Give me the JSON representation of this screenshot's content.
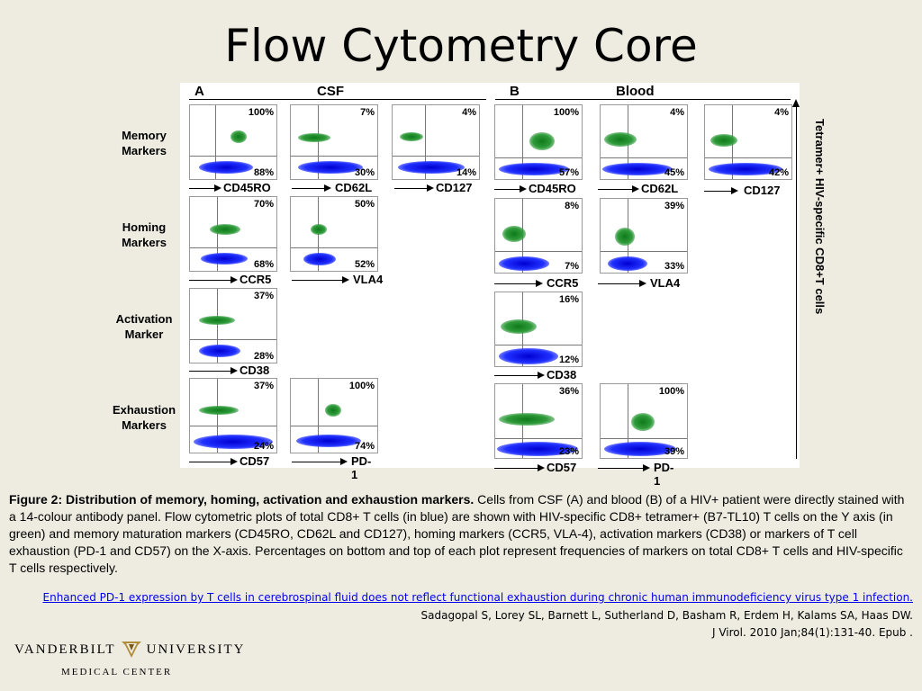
{
  "title": "Flow Cytometry Core",
  "figure": {
    "panel_a": {
      "letter": "A",
      "name": "CSF"
    },
    "panel_b": {
      "letter": "B",
      "name": "Blood"
    },
    "row_labels": [
      {
        "line1": "Memory",
        "line2": "Markers"
      },
      {
        "line1": "Homing",
        "line2": "Markers"
      },
      {
        "line1": "Activation",
        "line2": "Marker"
      },
      {
        "line1": "Exhaustion",
        "line2": "Markers"
      }
    ],
    "plots": {
      "a_memory": [
        {
          "top": "100%",
          "bottom": "88%",
          "x": "CD45RO"
        },
        {
          "top": "7%",
          "bottom": "30%",
          "x": "CD62L"
        },
        {
          "top": "4%",
          "bottom": "14%",
          "x": "CD127"
        }
      ],
      "b_memory": [
        {
          "top": "100%",
          "bottom": "57%",
          "x": "CD45RO"
        },
        {
          "top": "4%",
          "bottom": "45%",
          "x": "CD62L"
        },
        {
          "top": "4%",
          "bottom": "42%",
          "x": "CD127"
        }
      ],
      "a_homing": [
        {
          "top": "70%",
          "bottom": "68%",
          "x": "CCR5"
        },
        {
          "top": "50%",
          "bottom": "52%",
          "x": "VLA4"
        }
      ],
      "b_homing": [
        {
          "top": "8%",
          "bottom": "7%",
          "x": "CCR5"
        },
        {
          "top": "39%",
          "bottom": "33%",
          "x": "VLA4"
        }
      ],
      "a_activation": [
        {
          "top": "37%",
          "bottom": "28%",
          "x": "CD38"
        }
      ],
      "b_activation": [
        {
          "top": "16%",
          "bottom": "12%",
          "x": "CD38"
        }
      ],
      "a_exhaustion": [
        {
          "top": "37%",
          "bottom": "24%",
          "x": "CD57"
        },
        {
          "top": "100%",
          "bottom": "74%",
          "x": "PD-1"
        }
      ],
      "b_exhaustion": [
        {
          "top": "36%",
          "bottom": "23%",
          "x": "CD57"
        },
        {
          "top": "100%",
          "bottom": "39%",
          "x": "PD-1"
        }
      ]
    },
    "y_axis_label": "Tetramer+ HIV-specific CD8+T cells"
  },
  "caption": {
    "bold": "Figure 2: Distribution of memory, homing, activation and exhaustion markers.",
    "text": " Cells from CSF (A) and blood (B) of a HIV+ patient were directly stained with a 14-colour antibody panel. Flow cytometric plots of total CD8+ T cells (in blue) are shown with HIV-specific CD8+ tetramer+ (B7-TL10) T cells on the Y axis (in green) and memory maturation markers (CD45RO, CD62L and CD127), homing markers (CCR5, VLA-4), activation markers (CD38) or markers of T cell exhaustion (PD-1 and CD57) on the X-axis. Percentages on bottom and top of each plot represent frequencies of markers on total CD8+ T cells and HIV-specific T cells respectively."
  },
  "reference": {
    "link": "Enhanced PD-1 expression by T cells in cerebrospinal fluid does not reflect functional exhaustion during chronic human immunodeficiency virus type 1 infection.",
    "authors": "Sadagopal S, Lorey SL, Barnett L, Sutherland D, Basham R, Erdem H, Kalams SA, Haas DW.",
    "journal": "J Virol. 2010 Jan;84(1):131-40. Epub ."
  },
  "logo": {
    "left": "VANDERBILT",
    "right": "UNIVERSITY",
    "sub": "MEDICAL CENTER",
    "icon": "vanderbilt-oak-leaf-icon"
  }
}
